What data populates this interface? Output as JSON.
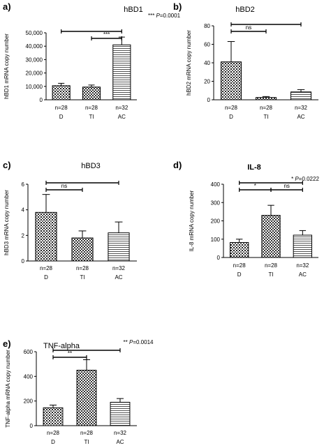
{
  "chart_data": [
    {
      "panel": "a)",
      "type": "bar",
      "title": "hBD1",
      "title_bold": false,
      "ylabel": "hBD1 mRNA copy number",
      "ylim": [
        0,
        50000
      ],
      "yticks": [
        0,
        10000,
        20000,
        30000,
        40000,
        50000
      ],
      "ytick_labels": [
        "0",
        "10,000",
        "20,000",
        "30,000",
        "40,000",
        "50,000"
      ],
      "categories": [
        "D",
        "TI",
        "AC"
      ],
      "n_labels": [
        "n=28",
        "n=28",
        "n=32"
      ],
      "patterns": [
        "dots",
        "checker",
        "hlines"
      ],
      "values": [
        10500,
        9500,
        41000
      ],
      "errors": [
        1800,
        1500,
        5800
      ],
      "pvalue_stars": "***",
      "pvalue": "P=0.0001",
      "brackets": [
        {
          "from": 0,
          "to": 2,
          "label": ""
        },
        {
          "from": 1,
          "to": 2,
          "label": "***"
        }
      ]
    },
    {
      "panel": "b)",
      "type": "bar",
      "title": "hBD2",
      "title_bold": false,
      "ylabel": "hBD2 mRNA copy number",
      "ylim": [
        0,
        80
      ],
      "yticks": [
        0,
        20,
        40,
        60,
        80
      ],
      "ytick_labels": [
        "0",
        "20",
        "40",
        "60",
        "80"
      ],
      "categories": [
        "D",
        "TI",
        "AC"
      ],
      "n_labels": [
        "n=28",
        "n=28",
        "n=32"
      ],
      "patterns": [
        "dots",
        "checker",
        "hlines"
      ],
      "values": [
        41,
        2.5,
        8.5
      ],
      "errors": [
        22,
        1,
        2.5
      ],
      "pvalue_stars": "",
      "pvalue": "",
      "brackets": [
        {
          "from": 0,
          "to": 2,
          "label": ""
        },
        {
          "from": 0,
          "to": 1,
          "label": "ns"
        }
      ]
    },
    {
      "panel": "c)",
      "type": "bar",
      "title": "hBD3",
      "title_bold": false,
      "ylabel": "hBD3 mRNA copy number",
      "ylim": [
        0,
        6
      ],
      "yticks": [
        0,
        2,
        4,
        6
      ],
      "ytick_labels": [
        "0",
        "2",
        "4",
        "6"
      ],
      "categories": [
        "D",
        "TI",
        "AC"
      ],
      "n_labels": [
        "n=28",
        "n=28",
        "n=32"
      ],
      "patterns": [
        "dots",
        "checker",
        "hlines"
      ],
      "values": [
        3.8,
        1.8,
        2.2
      ],
      "errors": [
        1.4,
        0.55,
        0.85
      ],
      "pvalue_stars": "",
      "pvalue": "",
      "brackets": [
        {
          "from": 0,
          "to": 2,
          "label": ""
        },
        {
          "from": 0,
          "to": 1,
          "label": "ns"
        }
      ]
    },
    {
      "panel": "d)",
      "type": "bar",
      "title": "IL-8",
      "title_bold": true,
      "ylabel": "IL-8 mRNA copy number",
      "ylim": [
        0,
        400
      ],
      "yticks": [
        0,
        100,
        200,
        300,
        400
      ],
      "ytick_labels": [
        "0",
        "100",
        "200",
        "300",
        "400"
      ],
      "categories": [
        "D",
        "TI",
        "AC"
      ],
      "n_labels": [
        "n=28",
        "n=28",
        "n=32"
      ],
      "patterns": [
        "dots",
        "checker",
        "hlines"
      ],
      "values": [
        82,
        230,
        122
      ],
      "errors": [
        18,
        55,
        25
      ],
      "pvalue_stars": "*",
      "pvalue": "P=0.0222",
      "brackets": [
        {
          "from": 0,
          "to": 2,
          "label": ""
        },
        {
          "from": 0,
          "to": 1,
          "label": "*"
        },
        {
          "from": 1,
          "to": 2,
          "label": "ns"
        }
      ]
    },
    {
      "panel": "e)",
      "type": "bar",
      "title": "TNF-alpha",
      "title_bold": false,
      "ylabel": "TNF-alpha mRNA copy number",
      "ylim": [
        0,
        600
      ],
      "yticks": [
        0,
        200,
        400,
        600
      ],
      "ytick_labels": [
        "0",
        "200",
        "400",
        "600"
      ],
      "categories": [
        "D",
        "TI",
        "AC"
      ],
      "n_labels": [
        "n=28",
        "n=28",
        "n=32"
      ],
      "patterns": [
        "dots",
        "checker",
        "hlines"
      ],
      "values": [
        145,
        450,
        190
      ],
      "errors": [
        22,
        85,
        30
      ],
      "pvalue_stars": "**",
      "pvalue": "P=0.0014",
      "brackets": [
        {
          "from": 0,
          "to": 2,
          "label": ""
        },
        {
          "from": 0,
          "to": 1,
          "label": "**"
        }
      ]
    }
  ]
}
